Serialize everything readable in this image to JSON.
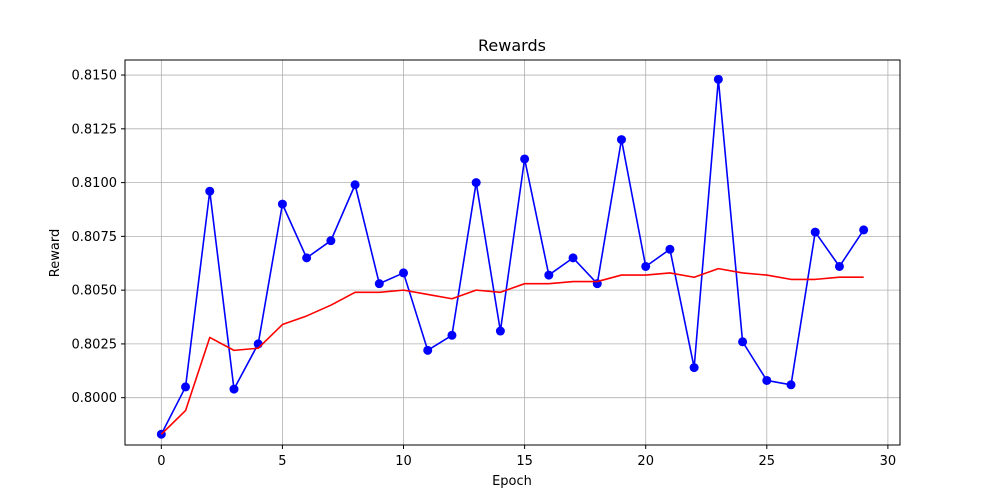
{
  "chart_data": {
    "type": "line",
    "title": "Rewards",
    "xlabel": "Epoch",
    "ylabel": "Reward",
    "xlim": [
      -1.5,
      30.5
    ],
    "ylim": [
      0.7978,
      0.8157
    ],
    "xticks": [
      0,
      5,
      10,
      15,
      20,
      25,
      30
    ],
    "xtick_labels": [
      "0",
      "5",
      "10",
      "15",
      "20",
      "25",
      "30"
    ],
    "yticks": [
      0.8,
      0.8025,
      0.805,
      0.8075,
      0.81,
      0.8125,
      0.815
    ],
    "ytick_labels": [
      "0.8000",
      "0.8025",
      "0.8050",
      "0.8075",
      "0.8100",
      "0.8125",
      "0.8150"
    ],
    "grid": true,
    "series": [
      {
        "color": "#0000ff",
        "marker": "circle",
        "x": [
          0,
          1,
          2,
          3,
          4,
          5,
          6,
          7,
          8,
          9,
          10,
          11,
          12,
          13,
          14,
          15,
          16,
          17,
          18,
          19,
          20,
          21,
          22,
          23,
          24,
          25,
          26,
          27,
          28,
          29
        ],
        "values": [
          0.7983,
          0.8005,
          0.8096,
          0.8004,
          0.8025,
          0.809,
          0.8065,
          0.8073,
          0.8099,
          0.8053,
          0.8058,
          0.8022,
          0.8029,
          0.81,
          0.8031,
          0.8111,
          0.8057,
          0.8065,
          0.8053,
          0.812,
          0.8061,
          0.8069,
          0.8014,
          0.8148,
          0.8026,
          0.8008,
          0.8006,
          0.8077,
          0.8061,
          0.8078
        ]
      },
      {
        "color": "#ff0000",
        "marker": "none",
        "x": [
          0,
          1,
          2,
          3,
          4,
          5,
          6,
          7,
          8,
          9,
          10,
          11,
          12,
          13,
          14,
          15,
          16,
          17,
          18,
          19,
          20,
          21,
          22,
          23,
          24,
          25,
          26,
          27,
          28,
          29
        ],
        "values": [
          0.7983,
          0.7994,
          0.8028,
          0.8022,
          0.8023,
          0.8034,
          0.8038,
          0.8043,
          0.8049,
          0.8049,
          0.805,
          0.8048,
          0.8046,
          0.805,
          0.8049,
          0.8053,
          0.8053,
          0.8054,
          0.8054,
          0.8057,
          0.8057,
          0.8058,
          0.8056,
          0.806,
          0.8058,
          0.8057,
          0.8055,
          0.8055,
          0.8056,
          0.8056
        ]
      }
    ]
  }
}
